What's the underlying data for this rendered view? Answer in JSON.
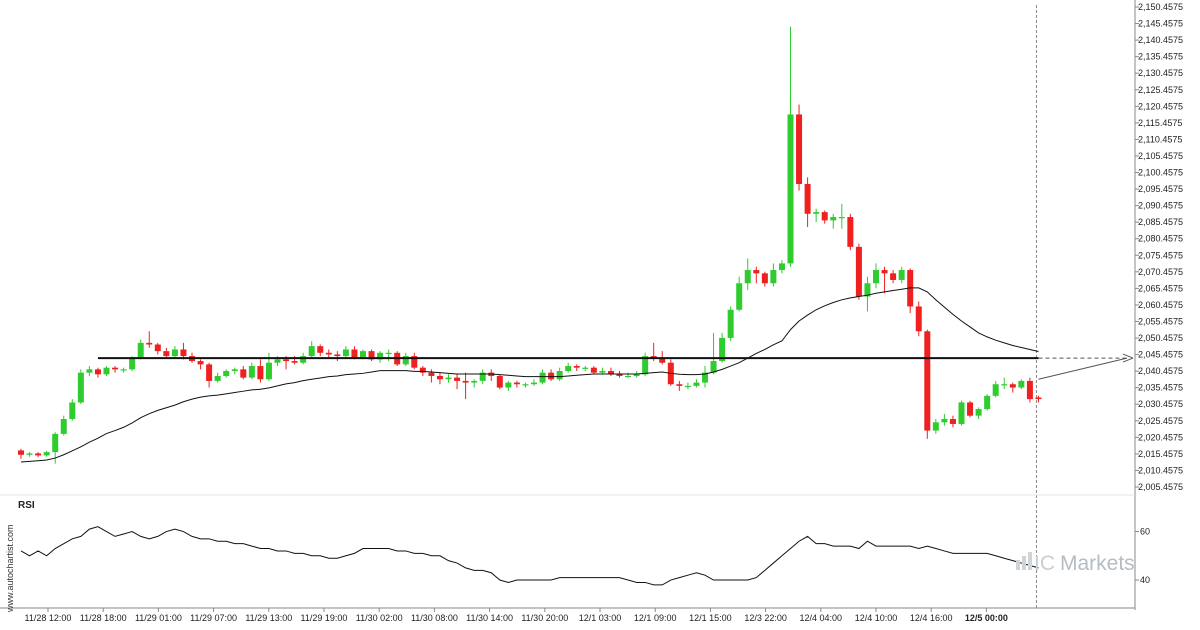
{
  "chart_data": {
    "type": "candlestick",
    "y_axis": {
      "range": [
        2005.4575,
        2150.4575
      ],
      "ticks": [
        "2,150.4575",
        "2,145.4575",
        "2,140.4575",
        "2,135.4575",
        "2,130.4575",
        "2,125.4575",
        "2,120.4575",
        "2,115.4575",
        "2,110.4575",
        "2,105.4575",
        "2,100.4575",
        "2,095.4575",
        "2,090.4575",
        "2,085.4575",
        "2,080.4575",
        "2,075.4575",
        "2,070.4575",
        "2,065.4575",
        "2,060.4575",
        "2,055.4575",
        "2,050.4575",
        "2,045.4575",
        "2,040.4575",
        "2,035.4575",
        "2,030.4575",
        "2,025.4575",
        "2,020.4575",
        "2,015.4575",
        "2,010.4575",
        "2,005.4575"
      ]
    },
    "x_axis": {
      "ticks": [
        "11/28 12:00",
        "11/28 18:00",
        "11/29 01:00",
        "11/29 07:00",
        "11/29 13:00",
        "11/29 19:00",
        "11/30 02:00",
        "11/30 08:00",
        "11/30 14:00",
        "11/30 20:00",
        "12/1 03:00",
        "12/1 09:00",
        "12/1 15:00",
        "12/3 22:00",
        "12/4 04:00",
        "12/4 10:00",
        "12/4 16:00",
        "12/5 00:00"
      ],
      "highlight": "12/5 00:00"
    },
    "candles": [
      [
        2016.5,
        2015.2,
        2017.0,
        2014.0
      ],
      [
        2015.2,
        2015.6,
        2016.0,
        2014.6
      ],
      [
        2015.6,
        2015.0,
        2016.0,
        2014.5
      ],
      [
        2015.0,
        2016.0,
        2016.4,
        2014.6
      ],
      [
        2016.0,
        2021.5,
        2022.0,
        2012.5
      ],
      [
        2021.5,
        2026.0,
        2027.0,
        2021.0
      ],
      [
        2026.0,
        2031.0,
        2032.0,
        2025.5
      ],
      [
        2031.0,
        2040.0,
        2041.0,
        2030.5
      ],
      [
        2040.0,
        2041.0,
        2042.0,
        2039.0
      ],
      [
        2041.0,
        2039.5,
        2041.5,
        2038.5
      ],
      [
        2039.5,
        2041.5,
        2042.0,
        2039.0
      ],
      [
        2041.5,
        2041.0,
        2042.0,
        2040.0
      ],
      [
        2041.0,
        2041.0,
        2041.5,
        2040.0
      ],
      [
        2041.0,
        2044.5,
        2045.0,
        2040.5
      ],
      [
        2044.5,
        2049.0,
        2050.0,
        2044.0
      ],
      [
        2049.0,
        2048.5,
        2052.5,
        2047.5
      ],
      [
        2048.5,
        2046.5,
        2049.0,
        2045.5
      ],
      [
        2046.5,
        2045.0,
        2047.5,
        2044.5
      ],
      [
        2045.0,
        2047.0,
        2048.0,
        2044.5
      ],
      [
        2047.0,
        2045.0,
        2049.0,
        2044.0
      ],
      [
        2045.0,
        2043.5,
        2046.0,
        2043.0
      ],
      [
        2043.5,
        2042.5,
        2044.0,
        2041.0
      ],
      [
        2042.5,
        2037.5,
        2043.0,
        2035.5
      ],
      [
        2037.5,
        2039.0,
        2040.0,
        2037.0
      ],
      [
        2039.0,
        2040.5,
        2041.0,
        2038.5
      ],
      [
        2040.5,
        2041.0,
        2041.5,
        2039.5
      ],
      [
        2041.0,
        2038.5,
        2042.0,
        2038.0
      ],
      [
        2038.5,
        2042.0,
        2043.0,
        2038.0
      ],
      [
        2042.0,
        2038.0,
        2044.0,
        2037.0
      ],
      [
        2038.0,
        2043.0,
        2046.0,
        2037.5
      ],
      [
        2043.0,
        2044.0,
        2045.0,
        2042.0
      ],
      [
        2044.0,
        2043.5,
        2045.0,
        2041.0
      ],
      [
        2043.5,
        2043.0,
        2045.0,
        2042.5
      ],
      [
        2043.0,
        2045.0,
        2046.0,
        2042.5
      ],
      [
        2045.0,
        2048.0,
        2049.5,
        2044.5
      ],
      [
        2048.0,
        2046.0,
        2048.5,
        2045.0
      ],
      [
        2046.0,
        2045.5,
        2047.0,
        2044.5
      ],
      [
        2045.5,
        2045.0,
        2046.5,
        2043.5
      ],
      [
        2045.0,
        2047.0,
        2048.0,
        2044.5
      ],
      [
        2047.0,
        2044.5,
        2048.0,
        2044.0
      ],
      [
        2044.5,
        2046.5,
        2047.0,
        2044.0
      ],
      [
        2046.5,
        2044.0,
        2047.0,
        2043.5
      ],
      [
        2044.0,
        2046.0,
        2046.5,
        2043.0
      ],
      [
        2046.0,
        2046.0,
        2047.0,
        2043.5
      ],
      [
        2046.0,
        2042.5,
        2046.5,
        2042.0
      ],
      [
        2042.5,
        2045.0,
        2046.0,
        2042.0
      ],
      [
        2045.0,
        2041.5,
        2046.0,
        2041.0
      ],
      [
        2041.5,
        2040.0,
        2042.0,
        2039.0
      ],
      [
        2040.0,
        2039.0,
        2041.0,
        2037.0
      ],
      [
        2039.0,
        2038.0,
        2040.0,
        2036.5
      ],
      [
        2038.0,
        2038.5,
        2039.5,
        2037.0
      ],
      [
        2038.5,
        2037.5,
        2039.5,
        2035.0
      ],
      [
        2037.5,
        2037.0,
        2040.0,
        2032.0
      ],
      [
        2037.0,
        2037.5,
        2038.0,
        2035.5
      ],
      [
        2037.5,
        2040.0,
        2041.0,
        2036.5
      ],
      [
        2040.0,
        2039.0,
        2041.0,
        2037.5
      ],
      [
        2039.0,
        2035.5,
        2039.5,
        2035.0
      ],
      [
        2035.5,
        2037.0,
        2037.5,
        2034.5
      ],
      [
        2037.0,
        2036.5,
        2037.5,
        2035.5
      ],
      [
        2036.5,
        2036.5,
        2037.0,
        2035.5
      ],
      [
        2036.5,
        2037.0,
        2038.0,
        2036.0
      ],
      [
        2037.0,
        2040.0,
        2041.0,
        2036.5
      ],
      [
        2040.0,
        2038.0,
        2041.0,
        2037.5
      ],
      [
        2038.0,
        2040.5,
        2041.5,
        2037.5
      ],
      [
        2040.5,
        2042.0,
        2043.0,
        2040.0
      ],
      [
        2042.0,
        2041.5,
        2042.5,
        2040.5
      ],
      [
        2041.5,
        2041.5,
        2042.0,
        2040.5
      ],
      [
        2041.5,
        2040.0,
        2042.0,
        2039.5
      ],
      [
        2040.0,
        2040.5,
        2041.5,
        2039.5
      ],
      [
        2040.5,
        2039.5,
        2041.5,
        2039.0
      ],
      [
        2039.5,
        2039.0,
        2040.5,
        2038.5
      ],
      [
        2039.0,
        2039.0,
        2040.0,
        2038.5
      ],
      [
        2039.0,
        2039.5,
        2040.5,
        2038.5
      ],
      [
        2039.5,
        2045.0,
        2046.0,
        2039.0
      ],
      [
        2045.0,
        2044.5,
        2049.0,
        2043.5
      ],
      [
        2044.5,
        2043.0,
        2046.5,
        2042.5
      ],
      [
        2043.0,
        2036.5,
        2044.0,
        2036.0
      ],
      [
        2036.5,
        2036.0,
        2037.5,
        2034.5
      ],
      [
        2036.0,
        2036.0,
        2037.0,
        2035.0
      ],
      [
        2036.0,
        2037.0,
        2038.0,
        2035.5
      ],
      [
        2037.0,
        2040.0,
        2042.0,
        2035.5
      ],
      [
        2040.0,
        2043.5,
        2052.0,
        2039.5
      ],
      [
        2043.5,
        2050.5,
        2052.0,
        2043.0
      ],
      [
        2050.5,
        2059.0,
        2060.0,
        2049.5
      ],
      [
        2059.0,
        2067.0,
        2069.0,
        2058.5
      ],
      [
        2067.0,
        2071.0,
        2074.5,
        2065.0
      ],
      [
        2071.0,
        2070.0,
        2072.0,
        2067.0
      ],
      [
        2070.0,
        2067.0,
        2070.5,
        2066.0
      ],
      [
        2067.0,
        2071.0,
        2073.0,
        2066.0
      ],
      [
        2071.0,
        2073.0,
        2074.0,
        2070.0
      ],
      [
        2073.0,
        2118.0,
        2144.5,
        2072.0
      ],
      [
        2118.0,
        2097.0,
        2121.0,
        2095.0
      ],
      [
        2097.0,
        2088.0,
        2099.0,
        2084.0
      ],
      [
        2088.0,
        2088.5,
        2089.5,
        2085.5
      ],
      [
        2088.5,
        2086.0,
        2089.0,
        2085.0
      ],
      [
        2086.0,
        2087.0,
        2088.0,
        2083.5
      ],
      [
        2087.0,
        2087.0,
        2091.0,
        2083.5
      ],
      [
        2087.0,
        2078.0,
        2088.0,
        2077.0
      ],
      [
        2078.0,
        2063.0,
        2079.0,
        2062.0
      ],
      [
        2063.0,
        2067.0,
        2069.0,
        2058.5
      ],
      [
        2067.0,
        2071.0,
        2073.0,
        2065.5
      ],
      [
        2071.0,
        2070.0,
        2072.0,
        2064.0
      ],
      [
        2070.0,
        2068.0,
        2071.0,
        2067.0
      ],
      [
        2068.0,
        2071.0,
        2072.0,
        2067.0
      ],
      [
        2071.0,
        2060.0,
        2071.5,
        2058.0
      ],
      [
        2060.0,
        2052.5,
        2061.5,
        2051.0
      ],
      [
        2052.5,
        2022.5,
        2053.0,
        2020.0
      ],
      [
        2022.5,
        2025.0,
        2026.0,
        2021.5
      ],
      [
        2025.0,
        2026.0,
        2027.5,
        2024.0
      ],
      [
        2026.0,
        2024.5,
        2027.0,
        2023.5
      ],
      [
        2024.5,
        2031.0,
        2031.5,
        2024.0
      ],
      [
        2031.0,
        2027.0,
        2031.5,
        2026.5
      ],
      [
        2027.0,
        2029.0,
        2029.5,
        2026.0
      ],
      [
        2029.0,
        2033.0,
        2033.5,
        2028.5
      ],
      [
        2033.0,
        2036.5,
        2037.5,
        2032.5
      ],
      [
        2036.5,
        2036.5,
        2038.5,
        2035.0
      ],
      [
        2036.5,
        2035.5,
        2037.0,
        2034.0
      ],
      [
        2035.5,
        2037.5,
        2038.0,
        2035.0
      ],
      [
        2037.5,
        2032.0,
        2038.5,
        2031.0
      ],
      [
        2032.5,
        2032.0,
        2033.0,
        2031.0
      ]
    ],
    "moving_average": [
      2013.0,
      2013.2,
      2013.4,
      2013.6,
      2014.2,
      2015.2,
      2016.4,
      2017.6,
      2019.0,
      2020.2,
      2021.6,
      2022.5,
      2023.5,
      2024.8,
      2026.4,
      2027.6,
      2028.6,
      2029.4,
      2030.2,
      2031.2,
      2032.0,
      2032.6,
      2033.0,
      2033.2,
      2033.6,
      2034.0,
      2034.4,
      2034.8,
      2035.0,
      2035.4,
      2036.0,
      2036.6,
      2037.0,
      2037.6,
      2038.0,
      2038.4,
      2038.8,
      2039.0,
      2039.4,
      2039.6,
      2039.8,
      2040.2,
      2040.6,
      2040.6,
      2040.6,
      2040.6,
      2040.4,
      2040.4,
      2040.2,
      2040.0,
      2039.8,
      2039.6,
      2039.6,
      2039.6,
      2039.6,
      2039.6,
      2039.4,
      2039.2,
      2039.0,
      2038.8,
      2038.8,
      2038.8,
      2038.8,
      2038.8,
      2039.0,
      2039.2,
      2039.4,
      2039.6,
      2039.6,
      2039.6,
      2039.6,
      2039.6,
      2039.6,
      2039.8,
      2040.0,
      2040.2,
      2039.8,
      2039.5,
      2039.4,
      2039.4,
      2039.6,
      2040.2,
      2041.0,
      2042.0,
      2043.0,
      2044.4,
      2045.8,
      2047.0,
      2048.4,
      2049.6,
      2053.0,
      2055.6,
      2057.4,
      2059.0,
      2060.2,
      2061.2,
      2062.0,
      2062.6,
      2063.0,
      2063.4,
      2064.0,
      2064.4,
      2064.8,
      2065.2,
      2065.6,
      2065.6,
      2064.4,
      2062.0,
      2059.8,
      2057.6,
      2055.6,
      2053.8,
      2052.0,
      2050.8,
      2049.8,
      2049.0,
      2048.2,
      2047.6,
      2047.0,
      2046.4
    ],
    "support_line": {
      "value": 2044.4,
      "from_index": 9,
      "to_index": 119
    },
    "projection": {
      "from_index": 119,
      "from_value": 2038.0,
      "to_value": 2044.4
    },
    "current_index": 119,
    "rsi": {
      "title": "RSI",
      "ticks": [
        "60",
        "40"
      ],
      "levels": [
        60,
        40
      ],
      "range": [
        33,
        66
      ],
      "values": [
        52,
        50,
        52,
        50,
        53,
        55,
        57,
        58,
        61,
        62,
        60,
        58,
        59,
        60,
        58,
        57,
        58,
        60,
        61,
        60,
        58,
        57,
        57,
        56,
        56,
        55,
        55,
        54,
        53,
        53,
        52,
        52,
        51,
        51,
        50,
        50,
        49,
        49,
        50,
        51,
        53,
        53,
        53,
        53,
        52,
        52,
        51,
        51,
        50,
        50,
        48,
        47,
        45,
        44,
        44,
        43,
        40,
        39,
        40,
        40,
        40,
        40,
        40,
        41,
        41,
        41,
        41,
        41,
        41,
        41,
        41,
        40,
        39,
        39,
        38,
        38,
        40,
        41,
        42,
        43,
        42,
        40,
        40,
        40,
        40,
        40,
        41,
        44,
        47,
        50,
        53,
        56,
        58,
        55,
        55,
        54,
        54,
        54,
        53,
        56,
        54,
        54,
        54,
        54,
        54,
        53,
        54,
        53,
        52,
        51,
        51,
        51,
        51,
        51,
        50,
        49,
        48,
        47,
        46,
        45
      ]
    }
  },
  "branding": {
    "side_text": "www.autochartist.com",
    "logo_part1": "IC",
    "logo_part2": "Markets"
  },
  "colors": {
    "up": "#2ecc2e",
    "down": "#ee2020",
    "ma": "#111111",
    "support": "#111111",
    "axis": "#888888"
  }
}
